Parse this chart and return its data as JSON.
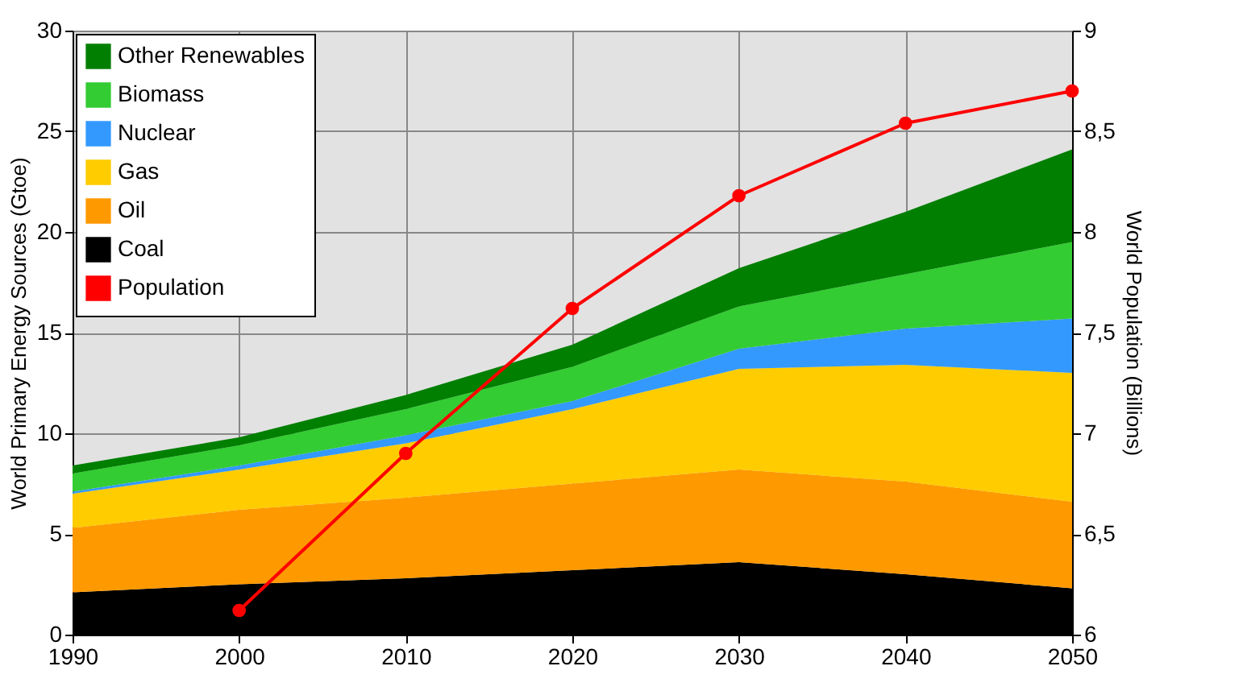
{
  "chart_data": {
    "type": "area",
    "stacked": true,
    "x": [
      1990,
      2000,
      2010,
      2020,
      2030,
      2040,
      2050
    ],
    "xlim": [
      1990,
      2050
    ],
    "xticks": [
      1990,
      2000,
      2010,
      2020,
      2030,
      2040,
      2050
    ],
    "ylim": [
      0,
      30
    ],
    "yticks": [
      0,
      5,
      10,
      15,
      20,
      25,
      30
    ],
    "y2lim": [
      6,
      9
    ],
    "y2ticks": [
      {
        "value": 6,
        "label": "6"
      },
      {
        "value": 6.5,
        "label": "6,5"
      },
      {
        "value": 7,
        "label": "7"
      },
      {
        "value": 7.5,
        "label": "7,5"
      },
      {
        "value": 8,
        "label": "8"
      },
      {
        "value": 8.5,
        "label": "8,5"
      },
      {
        "value": 9,
        "label": "9"
      }
    ],
    "ylabel": "World Primary Energy Sources (Gtoe)",
    "y2label": "World Population (Billions)",
    "grid": true,
    "legend": "top left",
    "series": [
      {
        "name": "Coal",
        "color": "#000000",
        "values": [
          2.1,
          2.5,
          2.8,
          3.2,
          3.6,
          3.0,
          2.3
        ]
      },
      {
        "name": "Oil",
        "color": "#ff9900",
        "values": [
          3.2,
          3.7,
          4.0,
          4.3,
          4.6,
          4.6,
          4.3
        ]
      },
      {
        "name": "Gas",
        "color": "#ffcc00",
        "values": [
          1.7,
          2.0,
          2.7,
          3.7,
          5.0,
          5.8,
          6.4
        ]
      },
      {
        "name": "Nuclear",
        "color": "#3399ff",
        "values": [
          0.1,
          0.2,
          0.4,
          0.4,
          1.0,
          1.8,
          2.7
        ]
      },
      {
        "name": "Biomass",
        "color": "#33cc33",
        "values": [
          0.9,
          1.0,
          1.3,
          1.7,
          2.1,
          2.7,
          3.8
        ]
      },
      {
        "name": "Other Renewables",
        "color": "#007f00",
        "values": [
          0.4,
          0.4,
          0.7,
          1.1,
          1.9,
          3.1,
          4.6
        ]
      },
      {
        "name": "Population",
        "type": "line",
        "axis": "y2",
        "color": "#ff0000",
        "marker": "circle",
        "values": [
          null,
          6.12,
          6.9,
          7.62,
          8.18,
          8.54,
          8.7
        ]
      }
    ]
  }
}
